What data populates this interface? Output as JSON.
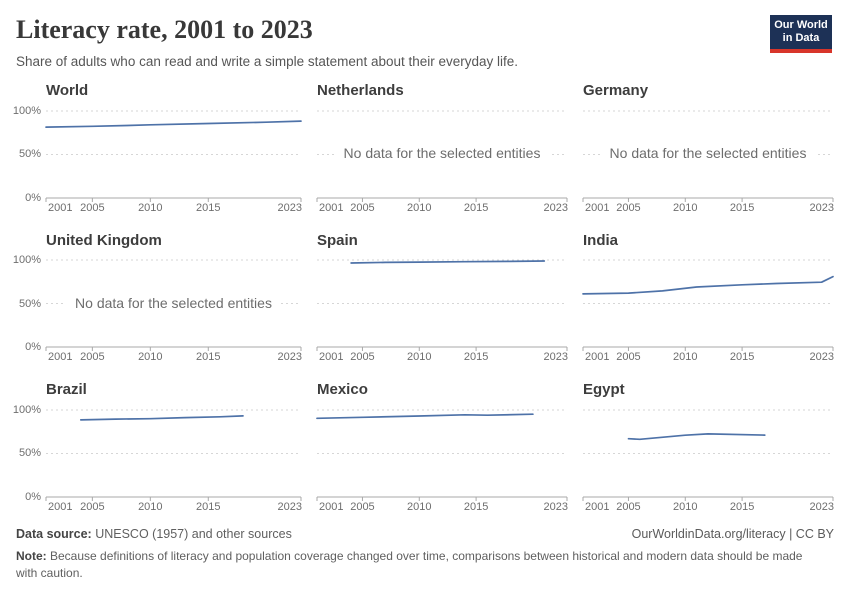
{
  "header": {
    "title": "Literacy rate, 2001 to 2023",
    "subtitle": "Share of adults who can read and write a simple statement about their everyday life.",
    "logo": {
      "line1": "Our World",
      "line2": "in Data",
      "bg_color": "#1d3156",
      "bar_color": "#d8352a"
    }
  },
  "chart_data": {
    "type": "line",
    "title": "Literacy rate, 2001 to 2023",
    "x_domain": [
      2001,
      2023
    ],
    "y_domain": [
      0,
      100
    ],
    "x_ticks": [
      2001,
      2005,
      2010,
      2015,
      2023
    ],
    "y_ticks": [
      {
        "label": "0%",
        "value": 0
      },
      {
        "label": "50%",
        "value": 50
      },
      {
        "label": "100%",
        "value": 100
      }
    ],
    "grid": "dashed horizontal at 50% and 100%",
    "line_color": "#4e72a8",
    "no_data_message": "No data for the selected entities",
    "panels": [
      {
        "title": "World",
        "show_y_labels": true,
        "no_data": false,
        "series": {
          "x": [
            2001,
            2005,
            2008,
            2010,
            2015,
            2020,
            2023
          ],
          "y": [
            81.5,
            82.4,
            83.3,
            84.1,
            85.6,
            87.1,
            88.4
          ]
        }
      },
      {
        "title": "Netherlands",
        "show_y_labels": false,
        "no_data": true
      },
      {
        "title": "Germany",
        "show_y_labels": false,
        "no_data": true
      },
      {
        "title": "United Kingdom",
        "show_y_labels": true,
        "no_data": true
      },
      {
        "title": "Spain",
        "show_y_labels": false,
        "no_data": false,
        "series": {
          "x": [
            2004,
            2007,
            2010,
            2014,
            2018,
            2021
          ],
          "y": [
            96.5,
            97.2,
            97.6,
            98.1,
            98.4,
            98.9
          ]
        }
      },
      {
        "title": "India",
        "show_y_labels": false,
        "no_data": false,
        "series": {
          "x": [
            2001,
            2005,
            2008,
            2011,
            2015,
            2018,
            2022,
            2023
          ],
          "y": [
            61.0,
            62.0,
            64.5,
            69.0,
            71.5,
            73.0,
            74.5,
            80.9
          ]
        }
      },
      {
        "title": "Brazil",
        "show_y_labels": true,
        "no_data": false,
        "series": {
          "x": [
            2004,
            2007,
            2010,
            2013,
            2016,
            2018
          ],
          "y": [
            88.6,
            89.5,
            90.0,
            91.3,
            92.2,
            93.2
          ]
        }
      },
      {
        "title": "Mexico",
        "show_y_labels": false,
        "no_data": false,
        "series": {
          "x": [
            2001,
            2005,
            2010,
            2014,
            2016,
            2020
          ],
          "y": [
            90.5,
            91.6,
            93.1,
            94.5,
            94.0,
            95.2
          ]
        }
      },
      {
        "title": "Egypt",
        "show_y_labels": false,
        "no_data": false,
        "series": {
          "x": [
            2005,
            2006,
            2010,
            2012,
            2017
          ],
          "y": [
            67.0,
            66.3,
            71.0,
            72.5,
            71.1
          ]
        }
      }
    ]
  },
  "footer": {
    "source_label": "Data source:",
    "source_text": " UNESCO (1957) and other sources",
    "link_text": "OurWorldinData.org/literacy | CC BY",
    "note_label": "Note:",
    "note_text": " Because definitions of literacy and population coverage changed over time, comparisons between historical and modern data should be made with caution."
  }
}
